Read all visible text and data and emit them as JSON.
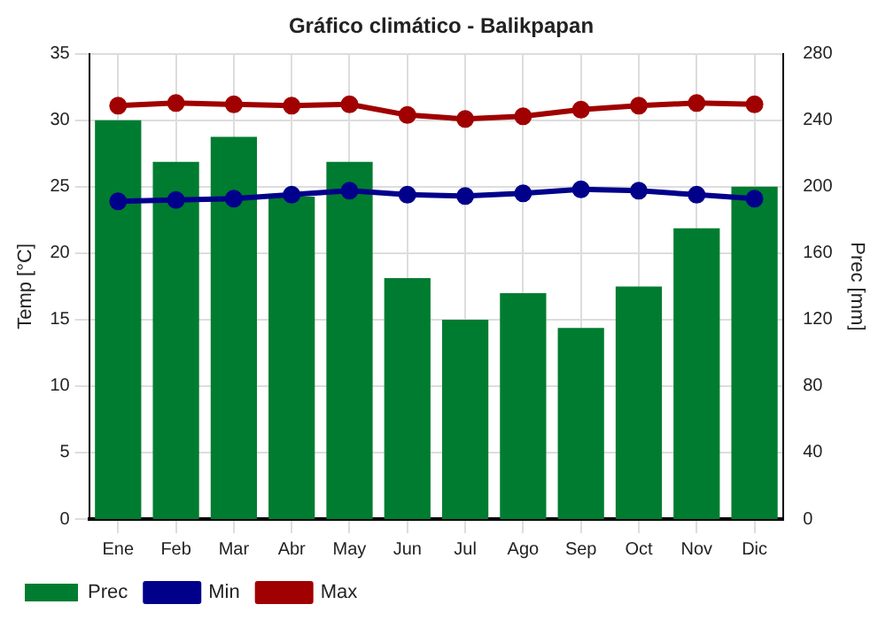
{
  "chart_data": {
    "type": "bar",
    "title": "Gráfico climático - Balikpapan",
    "ylabel": "Temp [°C]",
    "y2label": "Prec [mm]",
    "categories": [
      "Ene",
      "Feb",
      "Mar",
      "Abr",
      "May",
      "Jun",
      "Jul",
      "Ago",
      "Sep",
      "Oct",
      "Nov",
      "Dic"
    ],
    "series": [
      {
        "name": "Prec",
        "axis": "y2",
        "color": "#007c30",
        "values": [
          240,
          215,
          230,
          194,
          215,
          145,
          120,
          136,
          115,
          140,
          175,
          200
        ]
      },
      {
        "name": "Min",
        "type": "line",
        "axis": "y",
        "color": "#00008b",
        "values": [
          23.9,
          24.0,
          24.1,
          24.4,
          24.7,
          24.4,
          24.3,
          24.5,
          24.8,
          24.7,
          24.4,
          24.1
        ]
      },
      {
        "name": "Max",
        "type": "line",
        "axis": "y",
        "color": "#a00000",
        "values": [
          31.1,
          31.3,
          31.2,
          31.1,
          31.2,
          30.4,
          30.1,
          30.3,
          30.8,
          31.1,
          31.3,
          31.2
        ]
      }
    ],
    "ylim": [
      0,
      35
    ],
    "yticks": [
      0,
      5,
      10,
      15,
      20,
      25,
      30,
      35
    ],
    "y2lim": [
      0,
      280
    ],
    "y2ticks": [
      0,
      40,
      80,
      120,
      160,
      200,
      240,
      280
    ],
    "grid": true,
    "legend": "bottom left",
    "marker": "circle",
    "line_style": "solid"
  }
}
